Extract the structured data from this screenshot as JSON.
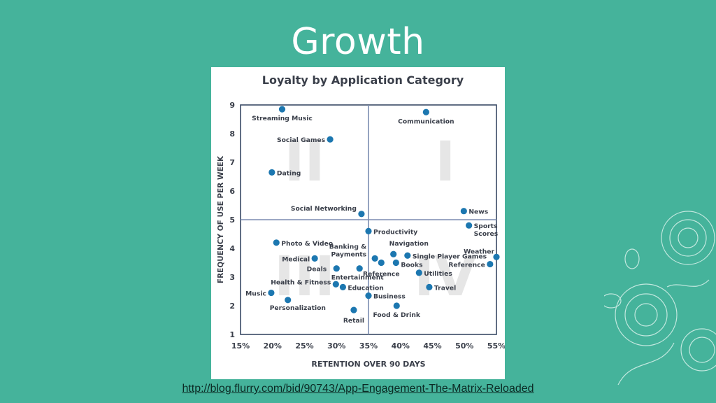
{
  "slide": {
    "title": "Growth",
    "source_url": "http://blog.flurry.com/bid/90743/App-Engagement-The-Matrix-Reloaded"
  },
  "colors": {
    "background": "#45b39b",
    "point": "#1c77b0",
    "axis": "#3a4a66",
    "quadrant_label": "#e6e6e6",
    "text": "#3a3f4a"
  },
  "chart_data": {
    "type": "scatter",
    "title": "Loyalty by Application Category",
    "xlabel": "RETENTION OVER 90 DAYS",
    "ylabel": "FREQUENCY OF USE PER WEEK",
    "xlim": [
      15,
      55
    ],
    "ylim": [
      1,
      9
    ],
    "xticks": [
      "15%",
      "20%",
      "25%",
      "30%",
      "35%",
      "40%",
      "45%",
      "50%",
      "55%"
    ],
    "yticks": [
      "1",
      "2",
      "3",
      "4",
      "5",
      "6",
      "7",
      "8",
      "9"
    ],
    "dividers": {
      "x": 35,
      "y": 5
    },
    "quadrants": [
      "II",
      "I",
      "III",
      "IV"
    ],
    "points": [
      {
        "label": "Streaming Music",
        "x": 21.5,
        "y": 8.85
      },
      {
        "label": "Social Games",
        "x": 29.0,
        "y": 7.8
      },
      {
        "label": "Dating",
        "x": 19.9,
        "y": 6.65
      },
      {
        "label": "Communication",
        "x": 44.0,
        "y": 8.75
      },
      {
        "label": "Social Networking",
        "x": 33.9,
        "y": 5.2
      },
      {
        "label": "News",
        "x": 49.9,
        "y": 5.3
      },
      {
        "label": "Sports Scores",
        "x": 50.7,
        "y": 4.8
      },
      {
        "label": "Productivity",
        "x": 35.0,
        "y": 4.6
      },
      {
        "label": "Photo & Video",
        "x": 20.6,
        "y": 4.2
      },
      {
        "label": "Medical",
        "x": 26.6,
        "y": 3.65
      },
      {
        "label": "Banking & Payments",
        "x": 36.0,
        "y": 3.65
      },
      {
        "label": "Navigation",
        "x": 38.9,
        "y": 3.8
      },
      {
        "label": "Single Player Games",
        "x": 41.1,
        "y": 3.75
      },
      {
        "label": "Books",
        "x": 39.3,
        "y": 3.5
      },
      {
        "label": "Reference",
        "x": 37.0,
        "y": 3.5
      },
      {
        "label": "Reference",
        "x": 54.0,
        "y": 3.45
      },
      {
        "label": "Weather",
        "x": 55.0,
        "y": 3.7
      },
      {
        "label": "Deals",
        "x": 30.0,
        "y": 3.3
      },
      {
        "label": "Entertainment",
        "x": 33.6,
        "y": 3.3
      },
      {
        "label": "Utilities",
        "x": 42.9,
        "y": 3.15
      },
      {
        "label": "Health & Fitness",
        "x": 29.9,
        "y": 2.75
      },
      {
        "label": "Education",
        "x": 31.0,
        "y": 2.65
      },
      {
        "label": "Travel",
        "x": 44.5,
        "y": 2.65
      },
      {
        "label": "Music",
        "x": 19.8,
        "y": 2.45
      },
      {
        "label": "Business",
        "x": 35.0,
        "y": 2.35
      },
      {
        "label": "Personalization",
        "x": 22.4,
        "y": 2.2
      },
      {
        "label": "Food & Drink",
        "x": 39.4,
        "y": 2.0
      },
      {
        "label": "Retail",
        "x": 32.7,
        "y": 1.85
      }
    ]
  }
}
